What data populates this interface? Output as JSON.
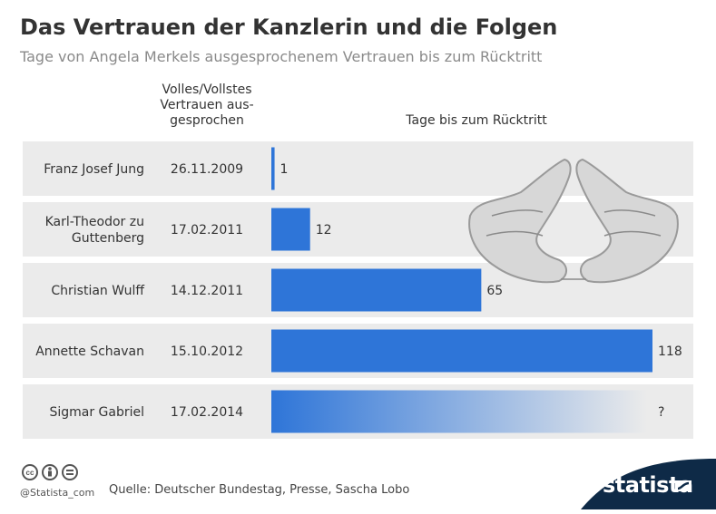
{
  "header": {
    "title": "Das Vertrauen der Kanzlerin und die Folgen",
    "subtitle": "Tage von Angela Merkels ausgesprochenem Vertrauen bis zum Rücktritt"
  },
  "columns": {
    "date_header_lines": [
      "Volles/Vollstes",
      "Vertrauen aus-",
      "gesprochen"
    ],
    "days_header": "Tage bis zum Rücktritt"
  },
  "chart_data": {
    "type": "bar",
    "orientation": "horizontal",
    "categories": [
      "Franz Josef Jung",
      "Karl-Theodor zu Guttenberg",
      "Christian Wulff",
      "Annette Schavan",
      "Sigmar Gabriel"
    ],
    "category_lines": [
      [
        "Franz Josef Jung"
      ],
      [
        "Karl-Theodor zu",
        "Guttenberg"
      ],
      [
        "Christian Wulff"
      ],
      [
        "Annette Schavan"
      ],
      [
        "Sigmar Gabriel"
      ]
    ],
    "dates": [
      "26.11.2009",
      "17.02.2011",
      "14.12.2011",
      "15.10.2012",
      "17.02.2014"
    ],
    "values": [
      1,
      12,
      65,
      118,
      null
    ],
    "value_labels": [
      "1",
      "12",
      "65",
      "118",
      "?"
    ],
    "xlim": [
      0,
      118
    ],
    "bar_color": "#2e75d8",
    "open_bar_last": true,
    "title": "",
    "xlabel": "Tage bis zum Rücktritt",
    "ylabel": ""
  },
  "footer": {
    "handle": "@Statista_com",
    "source": "Quelle: Deutscher Bundestag, Presse, Sascha Lobo",
    "brand": "statista",
    "cc_icons": [
      "cc-icon",
      "by-icon",
      "nd-icon"
    ],
    "brand_color": "#0e2a47"
  }
}
